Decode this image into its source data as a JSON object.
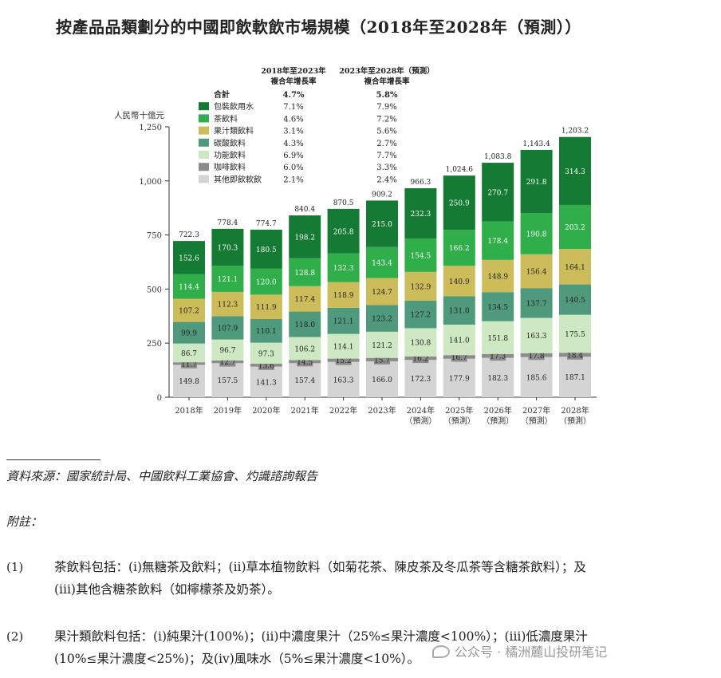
{
  "title": "按產品品類劃分的中國即飲軟飲市場規模（2018年至2028年（預測））",
  "chart_data": {
    "type": "bar",
    "stacked": true,
    "ylabel": "人民幣十億元",
    "ylim": [
      0,
      1250
    ],
    "yticks": [
      "0",
      "250",
      "500",
      "750",
      "1,000",
      "1,250"
    ],
    "ytick_values": [
      0,
      250,
      500,
      750,
      1000,
      1250
    ],
    "categories": [
      [
        "2018年"
      ],
      [
        "2019年"
      ],
      [
        "2020年"
      ],
      [
        "2021年"
      ],
      [
        "2022年"
      ],
      [
        "2023年"
      ],
      [
        "2024年",
        "（預測）"
      ],
      [
        "2025年",
        "（預測）"
      ],
      [
        "2026年",
        "（預測）"
      ],
      [
        "2027年",
        "（預測）"
      ],
      [
        "2028年",
        "（預測）"
      ]
    ],
    "totals": [
      722.3,
      778.4,
      774.7,
      840.4,
      870.5,
      909.2,
      966.3,
      1024.6,
      1083.8,
      1143.4,
      1203.2
    ],
    "total_labels": [
      "722.3",
      "778.4",
      "774.7",
      "840.4",
      "870.5",
      "909.2",
      "966.3",
      "1,024.6",
      "1,083.8",
      "1,143.4",
      "1,203.2"
    ],
    "series": [
      {
        "name": "其他即飲軟飲",
        "color": "#d4d4d4",
        "values": [
          149.8,
          157.5,
          141.3,
          157.4,
          163.3,
          166.0,
          172.3,
          177.9,
          182.3,
          185.6,
          187.1
        ],
        "labels": [
          "149.8",
          "157.5",
          "141.3",
          "157.4",
          "163.3",
          "166.0",
          "172.3",
          "177.9",
          "182.3",
          "185.6",
          "187.1"
        ]
      },
      {
        "name": "咖啡飲料",
        "color": "#8c8c8c",
        "values": [
          11.7,
          12.7,
          13.6,
          14.5,
          15.2,
          15.7,
          16.2,
          16.7,
          17.3,
          17.8,
          18.4
        ],
        "labels": [
          "11.7",
          "12.7",
          "13.6",
          "14.5",
          "15.2",
          "15.7",
          "16.2",
          "16.7",
          "17.3",
          "17.8",
          "18.4"
        ]
      },
      {
        "name": "功能飲料",
        "color": "#cfe8c4",
        "values": [
          86.7,
          96.7,
          97.3,
          106.2,
          114.1,
          121.2,
          130.8,
          141.0,
          151.8,
          163.3,
          175.5
        ],
        "labels": [
          "86.7",
          "96.7",
          "97.3",
          "106.2",
          "114.1",
          "121.2",
          "130.8",
          "141.0",
          "151.8",
          "163.3",
          "175.5"
        ]
      },
      {
        "name": "碳酸飲料",
        "color": "#4f9a7c",
        "values": [
          99.9,
          107.9,
          110.1,
          118.0,
          121.1,
          123.2,
          127.2,
          131.0,
          134.5,
          137.7,
          140.5
        ],
        "labels": [
          "99.9",
          "107.9",
          "110.1",
          "118.0",
          "121.1",
          "123.2",
          "127.2",
          "131.0",
          "134.5",
          "137.7",
          "140.5"
        ]
      },
      {
        "name": "果汁類飲料",
        "color": "#cdbd5a",
        "values": [
          107.2,
          112.3,
          111.9,
          117.4,
          118.9,
          124.7,
          132.9,
          140.9,
          148.9,
          156.4,
          164.1
        ],
        "labels": [
          "107.2",
          "112.3",
          "111.9",
          "117.4",
          "118.9",
          "124.7",
          "132.9",
          "140.9",
          "148.9",
          "156.4",
          "164.1"
        ]
      },
      {
        "name": "茶飲料",
        "color": "#2fae4a",
        "values": [
          114.4,
          121.1,
          120.0,
          128.8,
          132.3,
          143.4,
          154.5,
          166.2,
          178.4,
          190.8,
          203.2
        ],
        "labels": [
          "114.4",
          "121.1",
          "120.0",
          "128.8",
          "132.3",
          "143.4",
          "154.5",
          "166.2",
          "178.4",
          "190.8",
          "203.2"
        ]
      },
      {
        "name": "包裝飲用水",
        "color": "#157a33",
        "values": [
          152.6,
          170.3,
          180.5,
          198.2,
          205.8,
          215.0,
          232.3,
          250.9,
          270.7,
          291.8,
          314.3
        ],
        "labels": [
          "152.6",
          "170.3",
          "180.5",
          "198.2",
          "205.8",
          "215.0",
          "232.3",
          "250.9",
          "270.7",
          "291.8",
          "314.3"
        ]
      }
    ],
    "cagr_table": {
      "headers": [
        [
          "2018年至2023年",
          "複合年增長率"
        ],
        [
          "2023年至2028年（預測）",
          "複合年增長率"
        ]
      ],
      "rows": [
        {
          "label": "合計",
          "bold": true,
          "swatch": "",
          "c1": "4.7%",
          "c2": "5.8%"
        },
        {
          "label": "包裝飲用水",
          "swatch": "#157a33",
          "c1": "7.1%",
          "c2": "7.9%"
        },
        {
          "label": "茶飲料",
          "swatch": "#2fae4a",
          "c1": "4.6%",
          "c2": "7.2%"
        },
        {
          "label": "果汁類飲料",
          "swatch": "#cdbd5a",
          "c1": "3.1%",
          "c2": "5.6%"
        },
        {
          "label": "碳酸飲料",
          "swatch": "#4f9a7c",
          "c1": "4.3%",
          "c2": "2.7%"
        },
        {
          "label": "功能飲料",
          "swatch": "#cfe8c4",
          "c1": "6.9%",
          "c2": "7.7%"
        },
        {
          "label": "咖啡飲料",
          "swatch": "#8c8c8c",
          "c1": "6.0%",
          "c2": "3.3%"
        },
        {
          "label": "其他即飲軟飲",
          "swatch": "#d4d4d4",
          "c1": "2.1%",
          "c2": "2.4%"
        }
      ]
    }
  },
  "source": "資料來源：國家統計局、中國飲料工業協會、灼識諮詢報告",
  "notes_title": "附註：",
  "notes": [
    {
      "num": "(1)",
      "lines": [
        "茶飲料包括：(i)無糖茶及飲料；(ii)草本植物飲料（如菊花茶、陳皮茶及冬瓜茶等含糖茶飲料）；及",
        "(iii)其他含糖茶飲料（如檸檬茶及奶茶）。"
      ]
    },
    {
      "num": "(2)",
      "lines": [
        "果汁類飲料包括：(i)純果汁(100%)；(ii)中濃度果汁（25%≤果汁濃度<100%）；(iii)低濃度果汁",
        "(10%≤果汁濃度<25%)；及(iv)風味水（5%≤果汁濃度<10%）。"
      ]
    }
  ],
  "watermark": "公众号 · 橘洲麓山投研笔记"
}
